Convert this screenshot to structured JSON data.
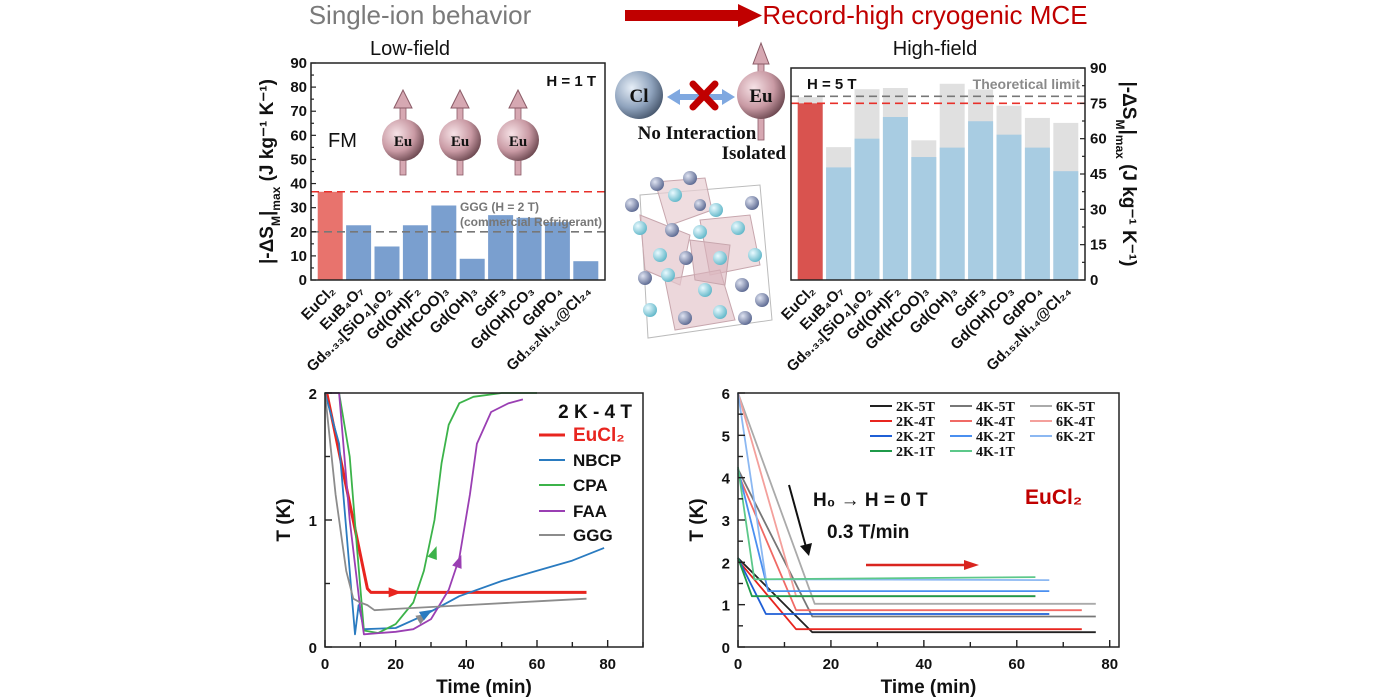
{
  "header": {
    "left_title": "Single-ion behavior",
    "right_title": "Record-high cryogenic MCE",
    "arrow_color": "#c00000",
    "left_subtitle": "Low-field",
    "right_subtitle": "High-field"
  },
  "schematic": {
    "fm_label": "FM",
    "ion_label": "Eu",
    "anion_label": "Cl",
    "no_interaction": "No Interaction",
    "isolated": "Isolated"
  },
  "chart_data": [
    {
      "type": "bar",
      "annotation": "H = 1 T",
      "categories": [
        "EuCl₂",
        "EuB₄O₇",
        "Gd₉.₃₃[SiO₄]₆O₂",
        "Gd(OH)F₂",
        "Gd(HCOO)₃",
        "Gd(OH)₃",
        "GdF₃",
        "Gd(OH)CO₃",
        "GdPO₄",
        "Gd₁₅₂Ni₁₄@Cl₂₄"
      ],
      "values": [
        36.6,
        22.7,
        13.9,
        22.7,
        30.9,
        8.8,
        26.9,
        25.8,
        24.0,
        7.8
      ],
      "highlight_color": "#e8736d",
      "bar_color": "#7a9fcf",
      "ylabel": [
        "|-ΔS",
        "M",
        "|",
        "max",
        " (J kg⁻¹ K⁻¹)"
      ],
      "ylim": [
        0,
        90
      ],
      "yticks": [
        0,
        10,
        20,
        30,
        40,
        50,
        60,
        70,
        80,
        90
      ],
      "reference_lines": [
        {
          "value": 36.6,
          "color": "#e8302a"
        },
        {
          "value": 20,
          "color": "#777777",
          "label1": "GGG (H = 2 T)",
          "label2": "(commercial Refrigerant)"
        }
      ]
    },
    {
      "type": "bar",
      "stacked": true,
      "annotation": "H = 5 T",
      "categories": [
        "EuCl₂",
        "EuB₄O₇",
        "Gd₉.₃₃[SiO₄]₆O₂",
        "Gd(OH)F₂",
        "Gd(HCOO)₃",
        "Gd(OH)₃",
        "GdF₃",
        "Gd(OH)CO₃",
        "GdPO₄",
        "Gd₁₅₂Ni₁₄@Cl₂₄"
      ],
      "values": [
        75.0,
        47.8,
        60.0,
        69.2,
        52.2,
        56.2,
        67.4,
        61.7,
        56.2,
        46.2
      ],
      "theoretical_values": [
        77.6,
        56.4,
        81.0,
        81.5,
        59.3,
        83.3,
        80.9,
        74.0,
        68.8,
        66.7
      ],
      "highlight_color": "#d9534f",
      "bar_color": "#a8cce2",
      "limit_color": "#e0e0e0",
      "ylabel": [
        "|-ΔS",
        "M",
        "|",
        "max",
        " (J kg⁻¹ K⁻¹)"
      ],
      "ylim": [
        0,
        90
      ],
      "yticks": [
        0,
        15,
        30,
        45,
        60,
        75,
        90
      ],
      "reference_lines": [
        {
          "value": 78,
          "color": "#777777",
          "label1": "Theoretical limit"
        },
        {
          "value": 75,
          "color": "#e8302a"
        }
      ]
    },
    {
      "type": "line",
      "annotation": "2 K - 4 T",
      "xlabel": "Time (min)",
      "ylabel": "T (K)",
      "xlim": [
        0,
        90
      ],
      "ylim": [
        0,
        2
      ],
      "xticks": [
        0,
        20,
        40,
        60,
        80
      ],
      "yticks": [
        0,
        1,
        2
      ],
      "legend": "top-right",
      "series": [
        {
          "name": "EuCl₂",
          "color": "#e8251f",
          "x": [
            0.5,
            12,
            13,
            20,
            40,
            60,
            74
          ],
          "y": [
            2.0,
            0.46,
            0.43,
            0.43,
            0.43,
            0.43,
            0.43
          ]
        },
        {
          "name": "NBCP",
          "color": "#2a7bc0",
          "x": [
            0,
            4,
            8.5,
            9.5,
            11,
            20,
            28,
            38,
            50,
            60,
            70,
            79
          ],
          "y": [
            2.0,
            1.6,
            0.1,
            0.33,
            0.14,
            0.15,
            0.25,
            0.4,
            0.52,
            0.6,
            0.68,
            0.78
          ]
        },
        {
          "name": "CPA",
          "color": "#3cb34a",
          "x": [
            0,
            4,
            7,
            9,
            11,
            15,
            20,
            25,
            28,
            31,
            33,
            35,
            38,
            42,
            50,
            60
          ],
          "y": [
            2.0,
            2.0,
            1.5,
            0.8,
            0.13,
            0.11,
            0.18,
            0.35,
            0.6,
            1.0,
            1.45,
            1.75,
            1.92,
            1.97,
            2.0,
            2.0
          ]
        },
        {
          "name": "FAA",
          "color": "#9a3fb3",
          "x": [
            0,
            4,
            7,
            10,
            11,
            20,
            25,
            30,
            35,
            38,
            41,
            43,
            47,
            52,
            56
          ],
          "y": [
            2.0,
            2.0,
            1.0,
            0.3,
            0.1,
            0.12,
            0.14,
            0.22,
            0.45,
            0.7,
            1.2,
            1.6,
            1.85,
            1.92,
            1.95
          ]
        },
        {
          "name": "GGG",
          "color": "#8c8c8c",
          "x": [
            0,
            3,
            6,
            8,
            10,
            12,
            14,
            20,
            40,
            60,
            74
          ],
          "y": [
            2.0,
            1.2,
            0.6,
            0.38,
            0.35,
            0.33,
            0.29,
            0.3,
            0.33,
            0.36,
            0.38
          ]
        }
      ]
    },
    {
      "type": "line",
      "xlabel": "Time (min)",
      "ylabel": "T (K)",
      "xlim": [
        0,
        82
      ],
      "ylim": [
        0,
        6
      ],
      "xticks": [
        0,
        20,
        40,
        60,
        80
      ],
      "yticks": [
        0,
        1,
        2,
        3,
        4,
        5,
        6
      ],
      "legend": "top-right",
      "annotation1": "H₀ → H = 0 T",
      "annotation2": "0.3 T/min",
      "material_label": "EuCl₂",
      "series": [
        {
          "name": "2K-5T",
          "color": "#222222",
          "x": [
            0,
            16,
            77
          ],
          "y": [
            2.1,
            0.35,
            0.35
          ]
        },
        {
          "name": "4K-5T",
          "color": "#777777",
          "x": [
            0,
            16,
            77
          ],
          "y": [
            4.2,
            0.72,
            0.72
          ]
        },
        {
          "name": "6K-5T",
          "color": "#aaaaaa",
          "x": [
            0,
            16.5,
            77
          ],
          "y": [
            6.0,
            1.02,
            1.02
          ]
        },
        {
          "name": "2K-4T",
          "color": "#e8251f",
          "x": [
            0,
            12.5,
            74
          ],
          "y": [
            2.05,
            0.42,
            0.42
          ]
        },
        {
          "name": "4K-4T",
          "color": "#f06a65",
          "x": [
            0,
            12.5,
            74
          ],
          "y": [
            4.1,
            0.87,
            0.87
          ]
        },
        {
          "name": "6K-4T",
          "color": "#f4a09c",
          "x": [
            0,
            12.5,
            64
          ],
          "y": [
            6.0,
            1.2,
            1.2
          ]
        },
        {
          "name": "2K-2T",
          "color": "#1f5fd6",
          "x": [
            0,
            6,
            67
          ],
          "y": [
            2.1,
            0.78,
            0.78
          ]
        },
        {
          "name": "4K-2T",
          "color": "#4a8ff0",
          "x": [
            0,
            6.5,
            67
          ],
          "y": [
            4.2,
            1.32,
            1.32
          ]
        },
        {
          "name": "6K-2T",
          "color": "#8cb8f2",
          "x": [
            0,
            6,
            67
          ],
          "y": [
            6.0,
            1.6,
            1.58
          ]
        },
        {
          "name": "2K-1T",
          "color": "#1f9a4a",
          "x": [
            0,
            3,
            64
          ],
          "y": [
            2.1,
            1.2,
            1.2
          ]
        },
        {
          "name": "4K-1T",
          "color": "#5cc88a",
          "x": [
            0,
            3.5,
            64
          ],
          "y": [
            4.25,
            1.6,
            1.65
          ]
        }
      ]
    }
  ]
}
